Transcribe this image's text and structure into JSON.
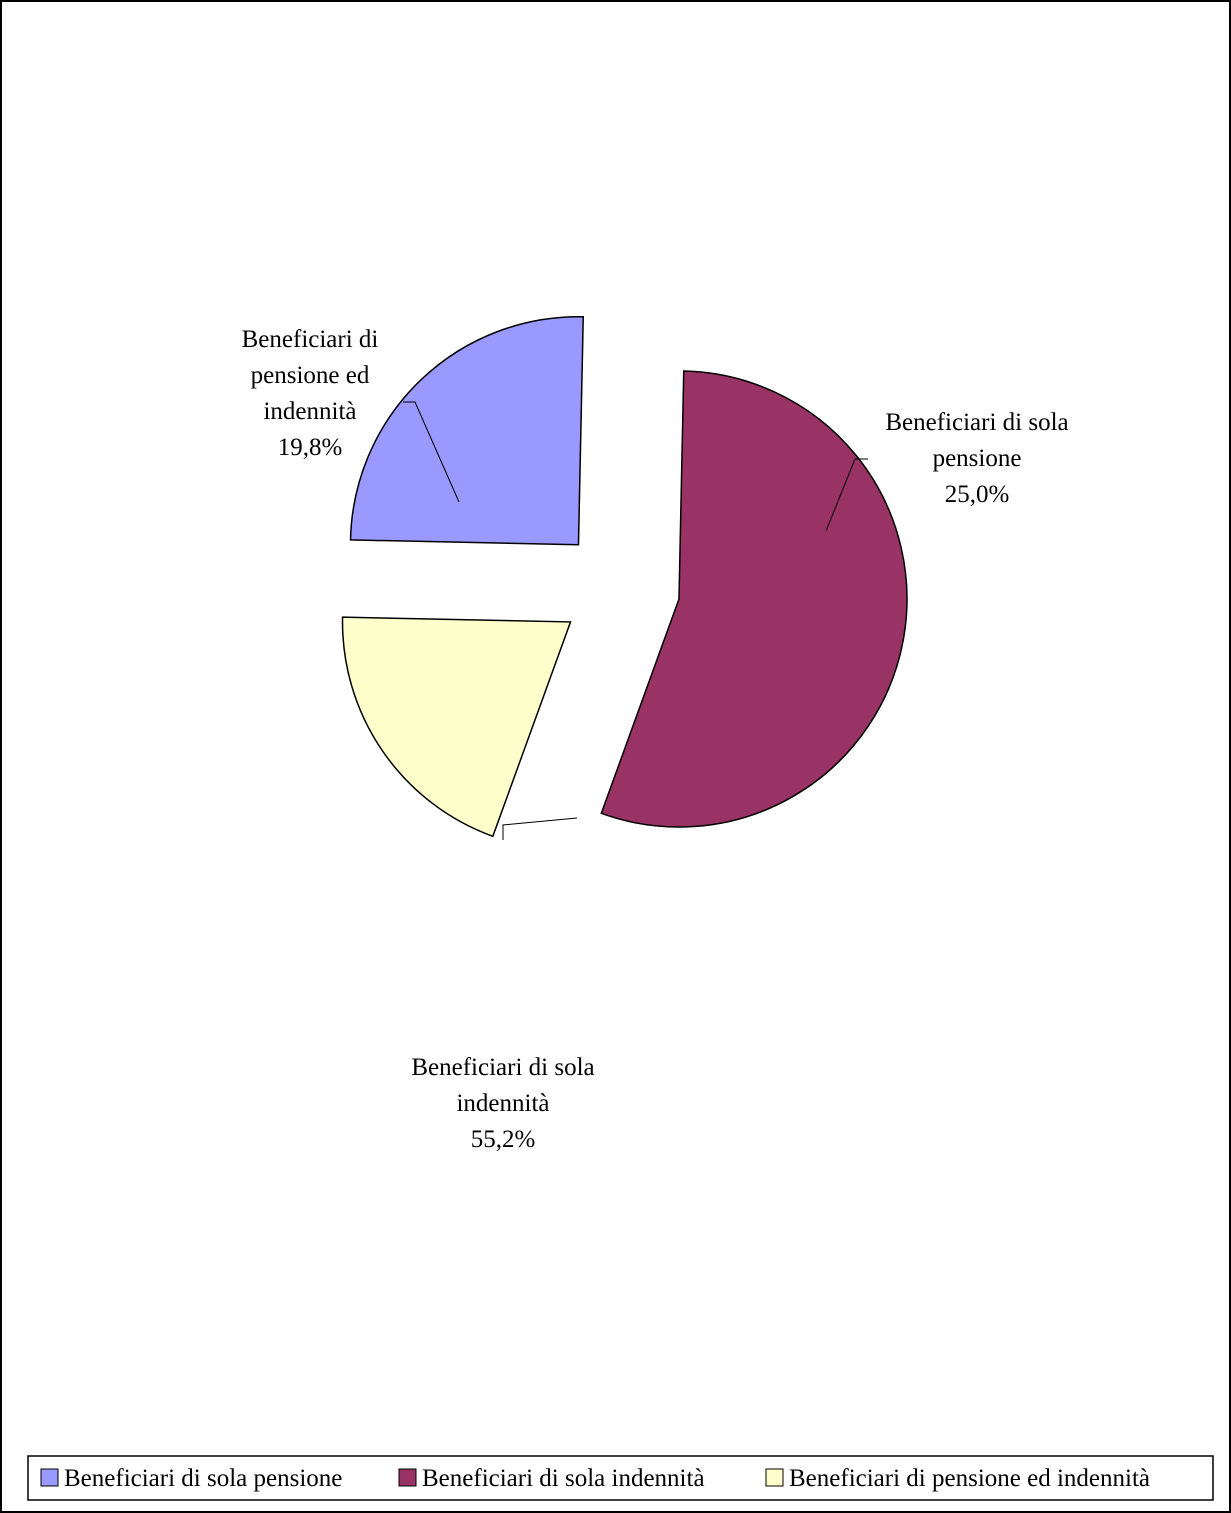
{
  "chart_data": {
    "type": "pie",
    "title": "",
    "exploded": true,
    "legend_position": "bottom",
    "series": [
      {
        "values": [
          25.0,
          55.2,
          19.8
        ],
        "categories": [
          "Beneficiari di sola pensione",
          "Beneficiari di sola indennità",
          "Beneficiari di pensione ed indennità"
        ],
        "colors": [
          "#9999FF",
          "#993366",
          "#FFFFCC"
        ]
      }
    ],
    "data_labels": [
      {
        "lines": [
          "Beneficiari di sola",
          "pensione",
          "25,0%"
        ]
      },
      {
        "lines": [
          "Beneficiari di sola",
          "indennità",
          "55,2%"
        ]
      },
      {
        "lines": [
          "Beneficiari di",
          "pensione ed",
          "indennità",
          "19,8%"
        ]
      }
    ],
    "legend": [
      "Beneficiari di sola pensione",
      "Beneficiari di sola indennità",
      "Beneficiari di pensione ed indennità"
    ]
  }
}
